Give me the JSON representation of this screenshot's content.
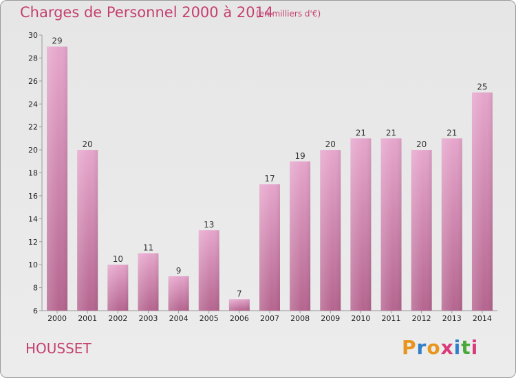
{
  "header": {
    "title": "Charges de Personnel 2000 à 2014",
    "subtitle": "(en milliers d'€)"
  },
  "footer": {
    "commune": "HOUSSET",
    "logo_letters": [
      "P",
      "r",
      "o",
      "x",
      "i",
      "t",
      "i"
    ],
    "logo_colors": [
      "#e8951d",
      "#2f7fc9",
      "#e8951d",
      "#d93a7a",
      "#2f7fc9",
      "#49a83a",
      "#d93a7a"
    ]
  },
  "chart_data": {
    "type": "bar",
    "categories": [
      "2000",
      "2001",
      "2002",
      "2003",
      "2004",
      "2005",
      "2006",
      "2007",
      "2008",
      "2009",
      "2010",
      "2011",
      "2012",
      "2013",
      "2014"
    ],
    "values": [
      29,
      20,
      10,
      11,
      9,
      13,
      7,
      17,
      19,
      20,
      21,
      21,
      20,
      21,
      25
    ],
    "ylim": [
      6,
      30
    ],
    "yticks": [
      6,
      8,
      10,
      12,
      14,
      16,
      18,
      20,
      22,
      24,
      26,
      28,
      30
    ],
    "grid": false,
    "bar_color": "#cc7aa6",
    "axis_color": "#999999"
  }
}
